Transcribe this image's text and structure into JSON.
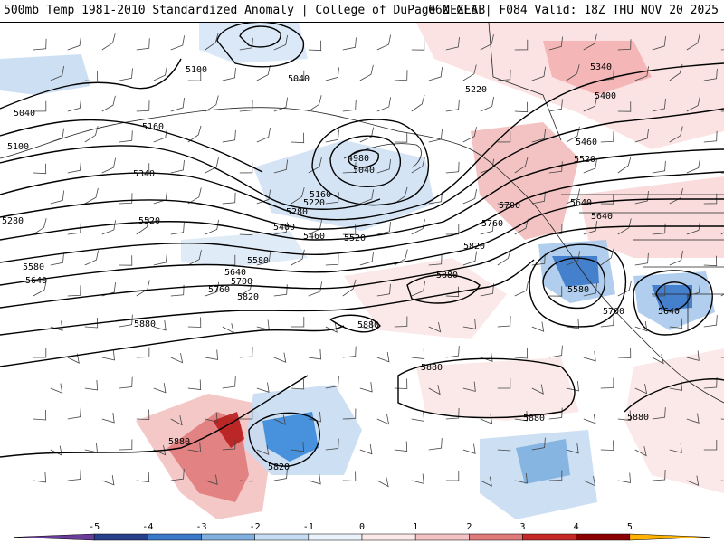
{
  "header": {
    "title": "500mb Temp 1981-2010 Standardized Anomaly | College of DuPage NEXLAB",
    "run": "06Z GFS | F084 Valid: 18Z THU NOV 20 2025"
  },
  "contour_labels": [
    {
      "text": "5100"
    },
    {
      "text": "5040"
    },
    {
      "text": "5100"
    },
    {
      "text": "5160"
    },
    {
      "text": "5340"
    },
    {
      "text": "5280"
    },
    {
      "text": "5520"
    },
    {
      "text": "5580"
    },
    {
      "text": "5640"
    },
    {
      "text": "5040"
    },
    {
      "text": "4980"
    },
    {
      "text": "5040"
    },
    {
      "text": "5160"
    },
    {
      "text": "5220"
    },
    {
      "text": "5280"
    },
    {
      "text": "5400"
    },
    {
      "text": "5460"
    },
    {
      "text": "5520"
    },
    {
      "text": "5580"
    },
    {
      "text": "5640"
    },
    {
      "text": "5700"
    },
    {
      "text": "5760"
    },
    {
      "text": "5820"
    },
    {
      "text": "5880"
    },
    {
      "text": "5880"
    },
    {
      "text": "5880"
    },
    {
      "text": "5220"
    },
    {
      "text": "5340"
    },
    {
      "text": "5400"
    },
    {
      "text": "5460"
    },
    {
      "text": "5520"
    },
    {
      "text": "5640"
    },
    {
      "text": "5640"
    },
    {
      "text": "5700"
    },
    {
      "text": "5760"
    },
    {
      "text": "5820"
    },
    {
      "text": "5580"
    },
    {
      "text": "5700"
    },
    {
      "text": "5640"
    },
    {
      "text": "5880"
    },
    {
      "text": "5880"
    },
    {
      "text": "5880"
    },
    {
      "text": "5880"
    },
    {
      "text": "5820"
    }
  ],
  "colorbar": {
    "ticks": [
      "-5",
      "-4",
      "-3",
      "-2",
      "-1",
      "0",
      "1",
      "2",
      "3",
      "4",
      "5"
    ],
    "colors": [
      "#6a3d9a",
      "#27408b",
      "#3a78c9",
      "#7fb0e0",
      "#c6dcf2",
      "#eaf2fb",
      "#fbe8e8",
      "#f4c2c2",
      "#e07a7a",
      "#c62828",
      "#8b0000",
      "#ffb300"
    ]
  }
}
